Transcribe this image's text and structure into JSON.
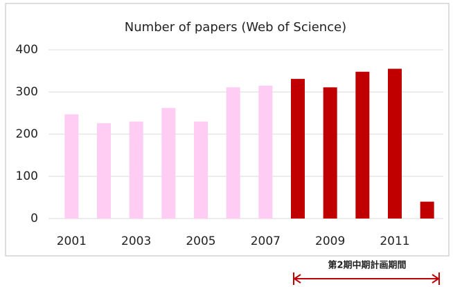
{
  "chart_data": {
    "type": "bar",
    "title": "Number of papers (Web of Science)",
    "categories": [
      "2001",
      null,
      "2003",
      null,
      "2005",
      null,
      "2007",
      null,
      "2009",
      null,
      "2011",
      null
    ],
    "values": [
      247,
      226,
      230,
      262,
      230,
      311,
      315,
      331,
      311,
      348,
      355,
      40
    ],
    "colors": [
      "#ffccf4",
      "#ffccf4",
      "#ffccf4",
      "#ffccf4",
      "#ffccf4",
      "#ffccf4",
      "#ffccf4",
      "#c00000",
      "#c00000",
      "#c00000",
      "#c00000",
      "#c00000"
    ],
    "ylim": [
      0,
      400
    ],
    "yticks": [
      0,
      100,
      200,
      300,
      400
    ],
    "grid": true,
    "annotations": [
      "第2期中期計画期間"
    ]
  }
}
